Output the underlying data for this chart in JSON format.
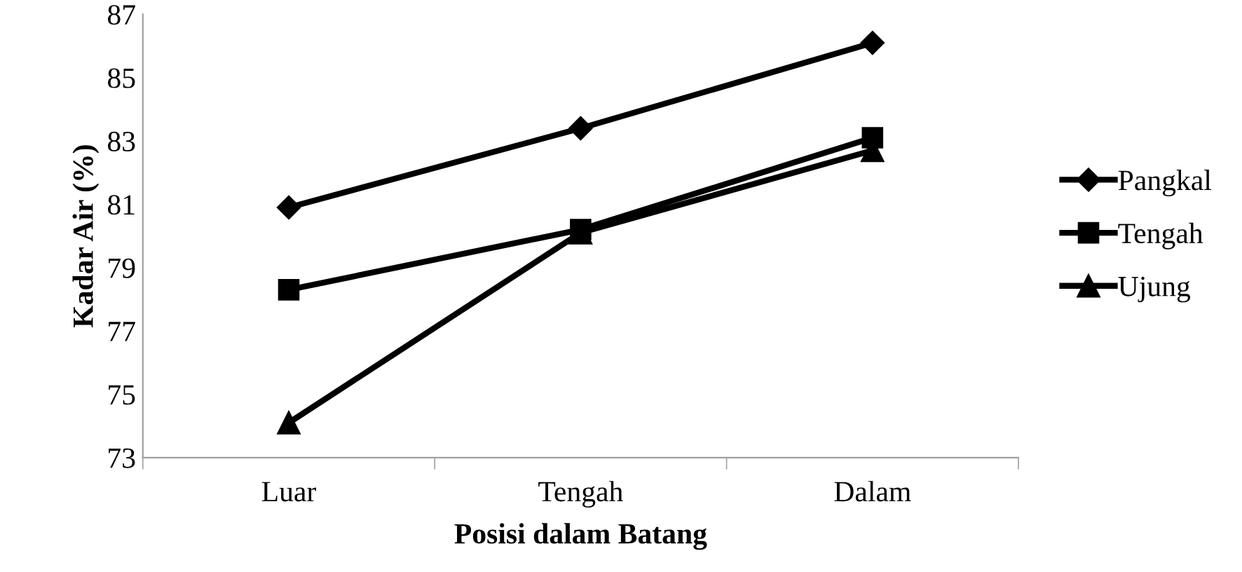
{
  "chart_data": {
    "type": "line",
    "xlabel": "Posisi dalam Batang",
    "ylabel": "Kadar Air (%)",
    "categories": [
      "Luar",
      "Tengah",
      "Dalam"
    ],
    "series": [
      {
        "name": "Pangkal",
        "color": "#000000",
        "marker": "diamond",
        "values": [
          80.9,
          83.4,
          86.1
        ]
      },
      {
        "name": "Tengah",
        "color": "#000000",
        "marker": "square",
        "values": [
          78.3,
          80.2,
          83.1
        ]
      },
      {
        "name": "Ujung",
        "color": "#000000",
        "marker": "triangle",
        "values": [
          74.1,
          80.1,
          82.7
        ]
      }
    ],
    "ylim": [
      73,
      87
    ],
    "yticks": [
      73,
      75,
      77,
      79,
      81,
      83,
      85,
      87
    ],
    "grid": false,
    "legend": "right",
    "line_style": "solid"
  }
}
